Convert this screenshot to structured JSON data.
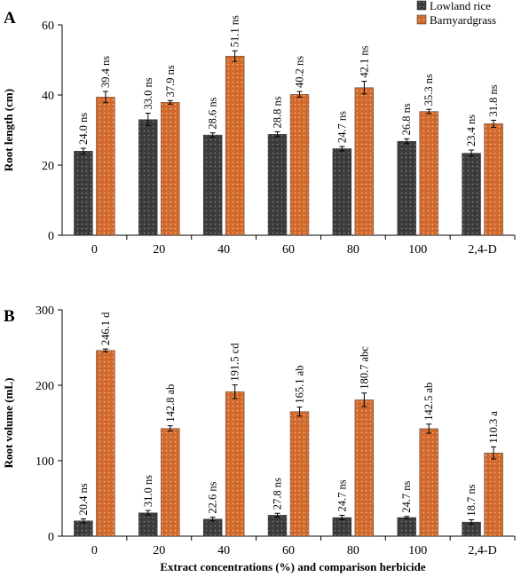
{
  "colors": {
    "lowland": "#3b3b3b",
    "barnyard": "#d2692c"
  },
  "legend": [
    "Lowland rice",
    "Barnyardgrass"
  ],
  "x_axis_label": "Extract concentrations (%) and comparison herbicide",
  "chart_data": [
    {
      "panel": "A",
      "type": "bar",
      "ylabel": "Root length (cm)",
      "ylim": [
        0,
        60
      ],
      "yticks": [
        0,
        20,
        40,
        60
      ],
      "categories": [
        "0",
        "20",
        "40",
        "60",
        "80",
        "100",
        "2,4-D"
      ],
      "series": [
        {
          "name": "Lowland rice",
          "values": [
            24.0,
            33.0,
            28.6,
            28.8,
            24.7,
            26.8,
            23.4
          ],
          "errors": [
            0.8,
            1.8,
            0.6,
            0.7,
            0.6,
            0.7,
            0.9
          ],
          "labels": [
            "24.0 ns",
            "33.0 ns",
            "28.6 ns",
            "28.8 ns",
            "24.7 ns",
            "26.8 ns",
            "23.4 ns"
          ]
        },
        {
          "name": "Barnyardgrass",
          "values": [
            39.4,
            37.9,
            51.1,
            40.2,
            42.1,
            35.3,
            31.8
          ],
          "errors": [
            1.6,
            0.5,
            1.5,
            0.8,
            1.8,
            0.6,
            1.0
          ],
          "labels": [
            "39.4 ns",
            "37.9 ns",
            "51.1 ns",
            "40.2 ns",
            "42.1 ns",
            "35.3 ns",
            "31.8 ns"
          ]
        }
      ]
    },
    {
      "panel": "B",
      "type": "bar",
      "ylabel": "Root volume (mL)",
      "ylim": [
        0,
        300
      ],
      "yticks": [
        0,
        100,
        200,
        300
      ],
      "categories": [
        "0",
        "20",
        "40",
        "60",
        "80",
        "100",
        "2,4-D"
      ],
      "series": [
        {
          "name": "Lowland rice",
          "values": [
            20.4,
            31.0,
            22.6,
            27.8,
            24.7,
            24.7,
            18.7
          ],
          "errors": [
            2.5,
            3.0,
            2.5,
            2.5,
            3.0,
            1.5,
            3.0
          ],
          "labels": [
            "20.4 ns",
            "31.0 ns",
            "22.6 ns",
            "27.8 ns",
            "24.7 ns",
            "24.7 ns",
            "18.7 ns"
          ]
        },
        {
          "name": "Barnyardgrass",
          "values": [
            246.1,
            142.8,
            191.5,
            165.1,
            180.7,
            142.5,
            110.3
          ],
          "errors": [
            2.0,
            3.5,
            9.0,
            6.0,
            9.0,
            6.0,
            8.0
          ],
          "labels": [
            "246.1 d",
            "142.8 ab",
            "191.5 cd",
            "165.1 ab",
            "180.7 abc",
            "142.5 ab",
            "110.3 a"
          ]
        }
      ]
    }
  ]
}
